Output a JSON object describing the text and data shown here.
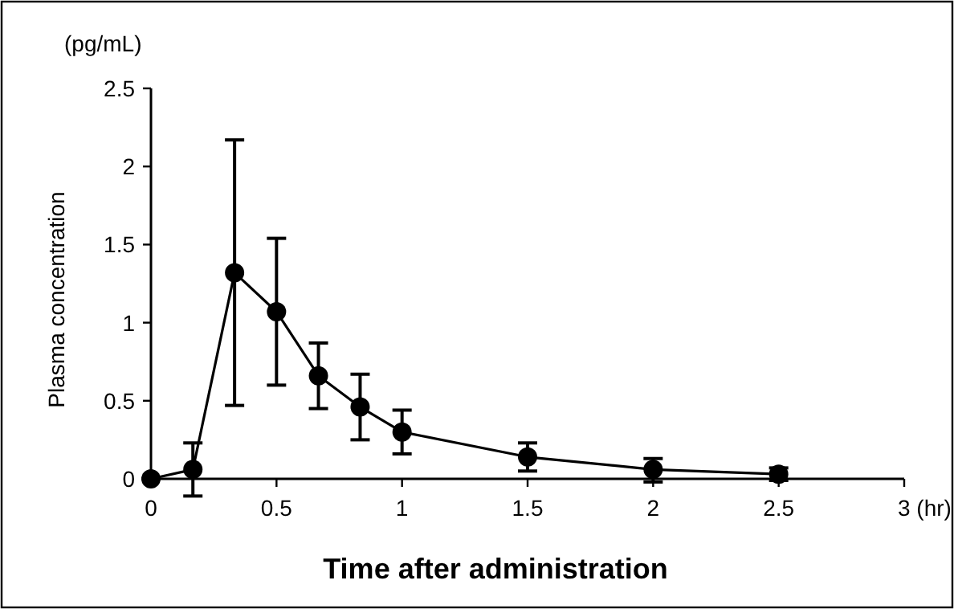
{
  "chart_data": {
    "type": "line",
    "xlabel": "Time after administration",
    "ylabel": "Plasma concentration",
    "annotations": [
      "(pg/mL)"
    ],
    "x": [
      0,
      0.167,
      0.333,
      0.5,
      0.667,
      0.833,
      1,
      1.5,
      2,
      2.5
    ],
    "series": [
      {
        "color": "#000000",
        "values": [
          0,
          0.06,
          1.32,
          1.07,
          0.66,
          0.46,
          0.3,
          0.14,
          0.06,
          0.03
        ],
        "errors": [
          0,
          0.17,
          0.85,
          0.47,
          0.21,
          0.21,
          0.14,
          0.09,
          [
            0.08,
            0.07
          ],
          0.04
        ]
      }
    ],
    "xlim": [
      0,
      3
    ],
    "xticks": [
      0,
      0.5,
      1,
      1.5,
      2,
      2.5,
      {
        "value": 3,
        "label": "3 (hr)"
      }
    ],
    "ylim": [
      0,
      2.5
    ],
    "yticks": [
      0,
      0.5,
      1,
      1.5,
      2,
      2.5
    ],
    "grid": false,
    "marker": "circle",
    "line_style": "solid"
  }
}
